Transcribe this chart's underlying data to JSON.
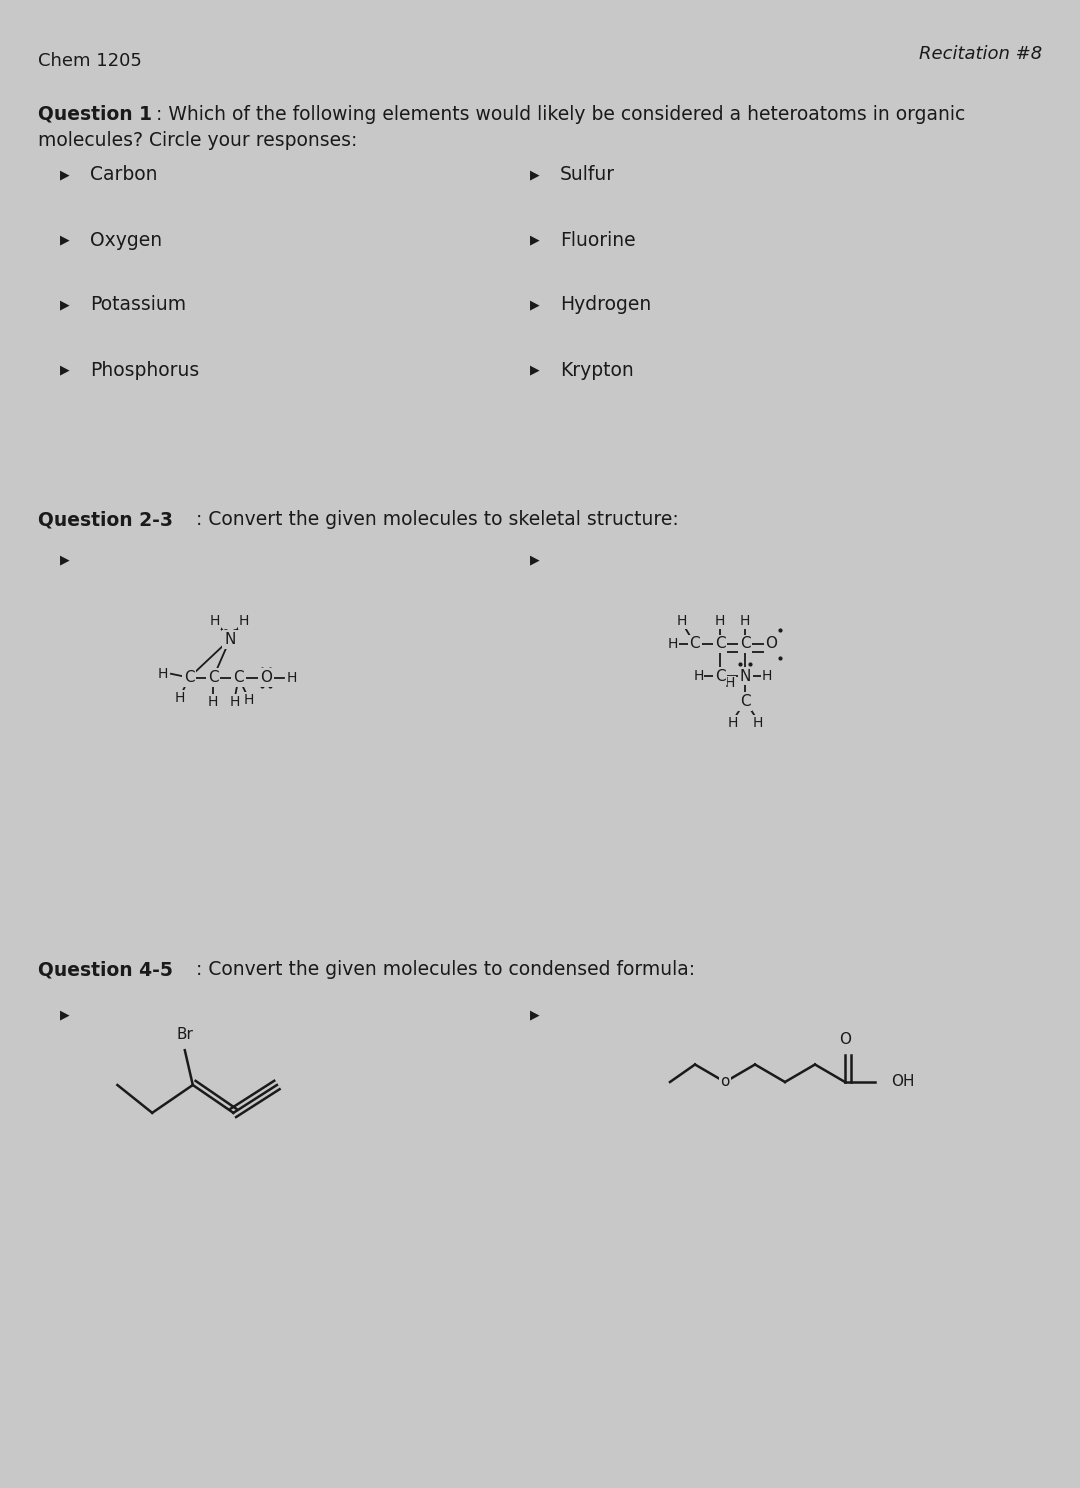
{
  "bg_color": "#c8c8c8",
  "text_color": "#1a1a1a",
  "header_left": "Chem 1205",
  "header_right": "Recitation #8",
  "q1_bold": "Question 1",
  "q1_text_rest": ": Which of the following elements would likely be considered a heteroatoms in organic",
  "q1_text_line2": "molecules? Circle your responses:",
  "q1_items_left": [
    "Carbon",
    "Oxygen",
    "Potassium",
    "Phosphorus"
  ],
  "q1_items_right": [
    "Sulfur",
    "Fluorine",
    "Hydrogen",
    "Krypton"
  ],
  "q23_bold": "Question 2-3",
  "q23_text": ": Convert the given molecules to skeletal structure:",
  "q45_bold": "Question 4-5",
  "q45_text": ": Convert the given molecules to condensed formula:"
}
